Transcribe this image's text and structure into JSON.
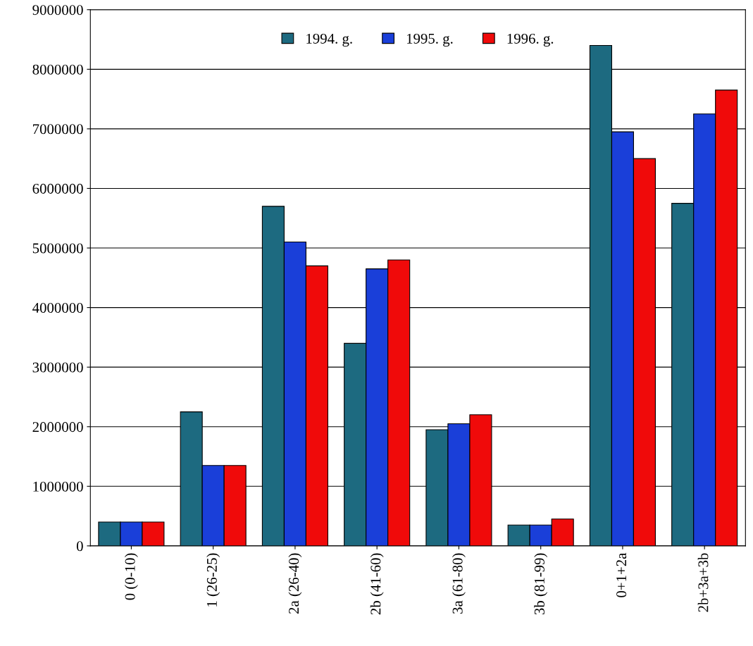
{
  "chart_data": {
    "type": "bar",
    "categories": [
      "0 (0-10)",
      "1 (26-25)",
      "2a (26-40)",
      "2b (41-60)",
      "3a (61-80)",
      "3b (81-99)",
      "0+1+2a",
      "2b+3a+3b"
    ],
    "series": [
      {
        "name": "1994. g.",
        "color": "#1d6a80",
        "values": [
          400000,
          2250000,
          5700000,
          3400000,
          1950000,
          350000,
          8400000,
          5750000
        ]
      },
      {
        "name": "1995. g.",
        "color": "#1a3fd9",
        "values": [
          400000,
          1350000,
          5100000,
          4650000,
          2050000,
          350000,
          6950000,
          7250000
        ]
      },
      {
        "name": "1996. g.",
        "color": "#f00a0a",
        "values": [
          400000,
          1350000,
          4700000,
          4800000,
          2200000,
          450000,
          6500000,
          7650000
        ]
      }
    ],
    "ylim": [
      0,
      9000000
    ],
    "yticks": [
      0,
      1000000,
      2000000,
      3000000,
      4000000,
      5000000,
      6000000,
      7000000,
      8000000,
      9000000
    ],
    "grid": "y",
    "legend": "top"
  }
}
